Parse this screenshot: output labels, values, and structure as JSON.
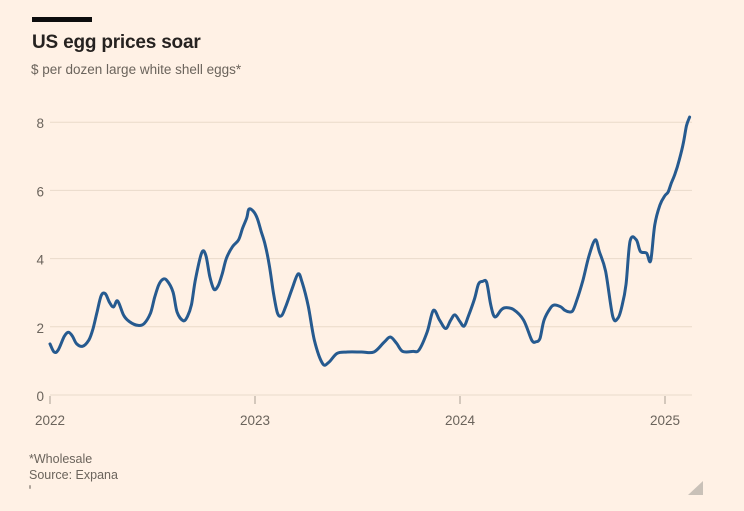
{
  "header": {
    "title": "US egg prices soar",
    "subtitle": "$ per dozen large white shell eggs*"
  },
  "footer": {
    "footnote": "*Wholesale",
    "source": "Source: Expana"
  },
  "colors": {
    "background": "#FFF1E5",
    "line": "#265A8F",
    "grid": "#EADACA",
    "tick": "#A89E93",
    "axis_label": "#6B645C",
    "title_text": "#262220",
    "muted_text": "#6B645C",
    "accent_bar": "#0D0D0D",
    "resize_handle": "#C9C1B8"
  },
  "chart_data": {
    "type": "line",
    "title": "US egg prices soar",
    "ylabel_unit": "$ per dozen large white shell eggs (wholesale)",
    "series_name": "US wholesale large white shell egg price, $ per dozen",
    "xticks": [
      "2022",
      "2023",
      "2024",
      "2025"
    ],
    "yticks": [
      0,
      2,
      4,
      6,
      8
    ],
    "xlim": [
      2022,
      2025.14
    ],
    "ylim": [
      0,
      8.5
    ],
    "grid": "horizontal",
    "legend": "none",
    "footnote": "*Wholesale",
    "source": "Source: Expana",
    "x": [
      2022.0,
      2022.02,
      2022.04,
      2022.07,
      2022.09,
      2022.11,
      2022.13,
      2022.16,
      2022.19,
      2022.21,
      2022.23,
      2022.25,
      2022.27,
      2022.29,
      2022.31,
      2022.33,
      2022.36,
      2022.39,
      2022.43,
      2022.46,
      2022.49,
      2022.51,
      2022.53,
      2022.55,
      2022.57,
      2022.6,
      2022.62,
      2022.65,
      2022.67,
      2022.69,
      2022.71,
      2022.74,
      2022.76,
      2022.78,
      2022.8,
      2022.82,
      2022.84,
      2022.86,
      2022.89,
      2022.92,
      2022.94,
      2022.96,
      2022.97,
      2022.99,
      2023.01,
      2023.03,
      2023.05,
      2023.07,
      2023.09,
      2023.11,
      2023.13,
      2023.15,
      2023.18,
      2023.21,
      2023.23,
      2023.26,
      2023.29,
      2023.33,
      2023.36,
      2023.4,
      2023.45,
      2023.52,
      2023.58,
      2023.63,
      2023.66,
      2023.69,
      2023.72,
      2023.77,
      2023.8,
      2023.84,
      2023.87,
      2023.9,
      2023.93,
      2023.955,
      2023.975,
      2024.0,
      2024.02,
      2024.04,
      2024.07,
      2024.09,
      2024.11,
      2024.13,
      2024.15,
      2024.17,
      2024.2,
      2024.22,
      2024.26,
      2024.31,
      2024.35,
      2024.37,
      2024.39,
      2024.41,
      2024.44,
      2024.46,
      2024.49,
      2024.51,
      2024.53,
      2024.55,
      2024.57,
      2024.6,
      2024.63,
      2024.66,
      2024.68,
      2024.71,
      2024.745,
      2024.77,
      2024.79,
      2024.81,
      2024.83,
      2024.86,
      2024.88,
      2024.91,
      2024.93,
      2024.95,
      2024.975,
      2025.0,
      2025.015,
      2025.03,
      2025.05,
      2025.07,
      2025.09,
      2025.105,
      2025.12
    ],
    "values": [
      1.5,
      1.26,
      1.32,
      1.72,
      1.84,
      1.72,
      1.5,
      1.43,
      1.62,
      1.95,
      2.45,
      2.92,
      2.97,
      2.72,
      2.58,
      2.76,
      2.33,
      2.14,
      2.04,
      2.1,
      2.4,
      2.85,
      3.22,
      3.39,
      3.36,
      3.02,
      2.43,
      2.18,
      2.3,
      2.65,
      3.41,
      4.17,
      4.1,
      3.46,
      3.1,
      3.2,
      3.55,
      4.0,
      4.35,
      4.55,
      4.9,
      5.2,
      5.45,
      5.4,
      5.2,
      4.8,
      4.4,
      3.8,
      3.0,
      2.4,
      2.33,
      2.6,
      3.1,
      3.55,
      3.3,
      2.6,
      1.6,
      0.92,
      0.96,
      1.22,
      1.26,
      1.26,
      1.26,
      1.55,
      1.7,
      1.52,
      1.28,
      1.28,
      1.32,
      1.85,
      2.48,
      2.2,
      1.95,
      2.2,
      2.35,
      2.15,
      2.02,
      2.3,
      2.8,
      3.25,
      3.33,
      3.3,
      2.64,
      2.29,
      2.49,
      2.56,
      2.51,
      2.2,
      1.61,
      1.56,
      1.66,
      2.2,
      2.54,
      2.64,
      2.59,
      2.49,
      2.44,
      2.47,
      2.78,
      3.37,
      4.1,
      4.55,
      4.2,
      3.63,
      2.31,
      2.25,
      2.6,
      3.24,
      4.52,
      4.55,
      4.21,
      4.16,
      3.94,
      4.99,
      5.57,
      5.85,
      5.95,
      6.2,
      6.5,
      6.9,
      7.4,
      7.9,
      8.15
    ]
  }
}
